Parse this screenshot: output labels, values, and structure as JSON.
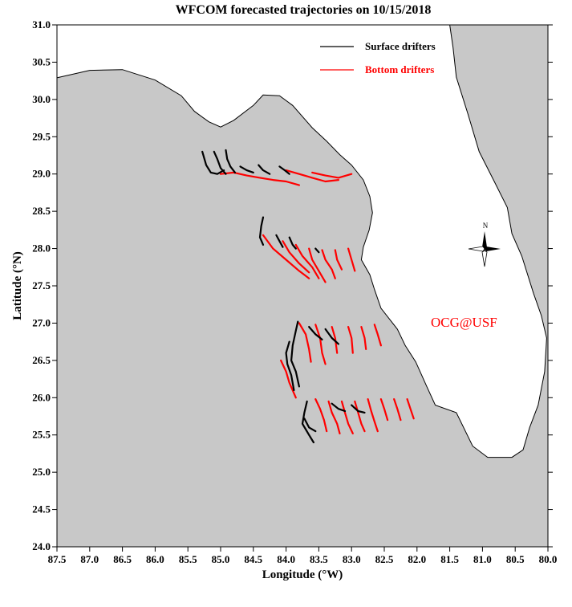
{
  "title": "WFCOM forecasted trajectories on 10/15/2018",
  "axes": {
    "xlabel": "Longitude (°W)",
    "ylabel": "Latitude (°N)",
    "xlim": [
      87.5,
      80.0
    ],
    "ylim": [
      24.0,
      31.0
    ],
    "x_ticks": [
      "87.5",
      "87.0",
      "86.5",
      "86.0",
      "85.5",
      "85.0",
      "84.5",
      "84.0",
      "83.5",
      "83.0",
      "82.5",
      "82.0",
      "81.5",
      "81.0",
      "80.5",
      "80.0"
    ],
    "y_ticks": [
      "24.0",
      "24.5",
      "25.0",
      "25.5",
      "26.0",
      "26.5",
      "27.0",
      "27.5",
      "28.0",
      "28.5",
      "29.0",
      "29.5",
      "30.0",
      "30.5",
      "31.0"
    ]
  },
  "legend": {
    "placement": "top-right",
    "items": [
      {
        "label": "Surface drifters",
        "color": "#000000"
      },
      {
        "label": "Bottom drifters",
        "color": "#ff0000"
      }
    ]
  },
  "credit": "OCG@USF",
  "compass_label": "N",
  "colors": {
    "land": "#c8c8c8",
    "surface": "#000000",
    "bottom": "#ff0000",
    "credit": "#ff0000"
  },
  "land_outline": [
    [
      87.5,
      30.29
    ],
    [
      87.0,
      30.39
    ],
    [
      86.5,
      30.4
    ],
    [
      86.0,
      30.26
    ],
    [
      85.6,
      30.05
    ],
    [
      85.4,
      29.84
    ],
    [
      85.18,
      29.7
    ],
    [
      85.0,
      29.63
    ],
    [
      84.8,
      29.72
    ],
    [
      84.5,
      29.92
    ],
    [
      84.35,
      30.06
    ],
    [
      84.1,
      30.05
    ],
    [
      83.9,
      29.92
    ],
    [
      83.6,
      29.62
    ],
    [
      83.38,
      29.44
    ],
    [
      83.18,
      29.26
    ],
    [
      83.0,
      29.12
    ],
    [
      82.82,
      28.92
    ],
    [
      82.72,
      28.7
    ],
    [
      82.68,
      28.48
    ],
    [
      82.73,
      28.25
    ],
    [
      82.82,
      28.02
    ],
    [
      82.85,
      27.85
    ],
    [
      82.72,
      27.65
    ],
    [
      82.65,
      27.45
    ],
    [
      82.55,
      27.2
    ],
    [
      82.3,
      26.92
    ],
    [
      82.18,
      26.7
    ],
    [
      82.02,
      26.48
    ],
    [
      81.85,
      26.15
    ],
    [
      81.72,
      25.9
    ],
    [
      81.4,
      25.8
    ],
    [
      81.15,
      25.35
    ],
    [
      80.92,
      25.2
    ],
    [
      80.55,
      25.2
    ],
    [
      80.38,
      25.3
    ],
    [
      80.28,
      25.6
    ],
    [
      80.15,
      25.9
    ],
    [
      80.05,
      26.35
    ],
    [
      80.02,
      26.8
    ],
    [
      80.1,
      27.1
    ],
    [
      80.22,
      27.4
    ],
    [
      80.4,
      27.9
    ],
    [
      80.55,
      28.2
    ],
    [
      80.62,
      28.55
    ],
    [
      80.82,
      28.9
    ],
    [
      81.05,
      29.3
    ],
    [
      81.22,
      29.8
    ],
    [
      81.4,
      30.3
    ],
    [
      81.45,
      30.7
    ],
    [
      81.5,
      31.0
    ],
    [
      80.0,
      31.0
    ],
    [
      80.0,
      24.0
    ],
    [
      87.5,
      24.0
    ]
  ],
  "drifter_groups": {
    "surface": [
      [
        [
          85.28,
          29.3
        ],
        [
          85.22,
          29.12
        ],
        [
          85.15,
          29.02
        ],
        [
          85.05,
          29.0
        ],
        [
          84.95,
          29.05
        ]
      ],
      [
        [
          85.1,
          29.3
        ],
        [
          85.05,
          29.2
        ],
        [
          85.0,
          29.08
        ],
        [
          84.92,
          29.0
        ]
      ],
      [
        [
          84.92,
          29.32
        ],
        [
          84.9,
          29.2
        ],
        [
          84.85,
          29.1
        ],
        [
          84.78,
          29.02
        ]
      ],
      [
        [
          84.7,
          29.1
        ],
        [
          84.6,
          29.05
        ],
        [
          84.5,
          29.02
        ]
      ],
      [
        [
          84.42,
          29.12
        ],
        [
          84.35,
          29.05
        ],
        [
          84.25,
          29.0
        ]
      ],
      [
        [
          84.1,
          29.1
        ],
        [
          84.02,
          29.05
        ],
        [
          83.95,
          29.0
        ]
      ],
      [
        [
          84.35,
          28.42
        ],
        [
          84.38,
          28.3
        ],
        [
          84.4,
          28.15
        ],
        [
          84.35,
          28.05
        ]
      ],
      [
        [
          84.15,
          28.18
        ],
        [
          84.1,
          28.1
        ],
        [
          84.05,
          28.02
        ]
      ],
      [
        [
          83.95,
          28.15
        ],
        [
          83.9,
          28.05
        ],
        [
          83.85,
          28.0
        ]
      ],
      [
        [
          83.55,
          28.0
        ],
        [
          83.5,
          27.95
        ]
      ],
      [
        [
          83.82,
          27.02
        ],
        [
          83.85,
          26.9
        ],
        [
          83.9,
          26.7
        ],
        [
          83.92,
          26.5
        ],
        [
          83.85,
          26.35
        ],
        [
          83.8,
          26.15
        ]
      ],
      [
        [
          83.95,
          26.75
        ],
        [
          84.0,
          26.6
        ],
        [
          83.98,
          26.45
        ],
        [
          83.92,
          26.3
        ],
        [
          83.88,
          26.1
        ]
      ],
      [
        [
          83.65,
          26.95
        ],
        [
          83.55,
          26.85
        ],
        [
          83.45,
          26.78
        ]
      ],
      [
        [
          83.4,
          26.92
        ],
        [
          83.3,
          26.8
        ],
        [
          83.2,
          26.72
        ]
      ],
      [
        [
          83.68,
          25.95
        ],
        [
          83.72,
          25.8
        ],
        [
          83.75,
          25.65
        ],
        [
          83.65,
          25.5
        ],
        [
          83.58,
          25.4
        ]
      ],
      [
        [
          83.72,
          25.72
        ],
        [
          83.65,
          25.6
        ],
        [
          83.55,
          25.55
        ]
      ],
      [
        [
          83.3,
          25.92
        ],
        [
          83.2,
          25.85
        ],
        [
          83.1,
          25.82
        ]
      ],
      [
        [
          83.0,
          25.9
        ],
        [
          82.9,
          25.82
        ],
        [
          82.8,
          25.8
        ]
      ]
    ],
    "bottom": [
      [
        [
          85.0,
          29.0
        ],
        [
          84.8,
          29.02
        ],
        [
          84.6,
          28.98
        ],
        [
          84.4,
          28.95
        ],
        [
          84.2,
          28.92
        ],
        [
          84.0,
          28.9
        ],
        [
          83.8,
          28.85
        ]
      ],
      [
        [
          84.0,
          29.05
        ],
        [
          83.8,
          29.0
        ],
        [
          83.6,
          28.95
        ],
        [
          83.4,
          28.9
        ],
        [
          83.2,
          28.92
        ]
      ],
      [
        [
          83.6,
          29.02
        ],
        [
          83.4,
          28.98
        ],
        [
          83.2,
          28.95
        ],
        [
          83.0,
          29.0
        ]
      ],
      [
        [
          84.35,
          28.18
        ],
        [
          84.2,
          28.0
        ],
        [
          84.0,
          27.85
        ],
        [
          83.8,
          27.7
        ],
        [
          83.65,
          27.6
        ]
      ],
      [
        [
          84.05,
          28.1
        ],
        [
          83.95,
          27.95
        ],
        [
          83.8,
          27.8
        ],
        [
          83.65,
          27.68
        ]
      ],
      [
        [
          83.85,
          28.05
        ],
        [
          83.75,
          27.9
        ],
        [
          83.6,
          27.75
        ],
        [
          83.5,
          27.6
        ]
      ],
      [
        [
          83.65,
          28.0
        ],
        [
          83.6,
          27.85
        ],
        [
          83.5,
          27.7
        ],
        [
          83.4,
          27.55
        ]
      ],
      [
        [
          83.45,
          27.98
        ],
        [
          83.4,
          27.85
        ],
        [
          83.3,
          27.72
        ],
        [
          83.25,
          27.6
        ]
      ],
      [
        [
          83.25,
          27.98
        ],
        [
          83.22,
          27.85
        ],
        [
          83.15,
          27.72
        ]
      ],
      [
        [
          83.05,
          28.0
        ],
        [
          83.0,
          27.85
        ],
        [
          82.95,
          27.7
        ]
      ],
      [
        [
          84.08,
          26.5
        ],
        [
          84.0,
          26.35
        ],
        [
          83.95,
          26.2
        ],
        [
          83.85,
          26.0
        ]
      ],
      [
        [
          83.8,
          27.0
        ],
        [
          83.7,
          26.85
        ],
        [
          83.65,
          26.65
        ],
        [
          83.62,
          26.48
        ]
      ],
      [
        [
          83.55,
          26.98
        ],
        [
          83.48,
          26.8
        ],
        [
          83.45,
          26.6
        ],
        [
          83.4,
          26.45
        ]
      ],
      [
        [
          83.3,
          26.95
        ],
        [
          83.25,
          26.8
        ],
        [
          83.22,
          26.6
        ]
      ],
      [
        [
          83.05,
          26.95
        ],
        [
          83.0,
          26.8
        ],
        [
          82.98,
          26.6
        ]
      ],
      [
        [
          82.85,
          26.95
        ],
        [
          82.8,
          26.8
        ],
        [
          82.78,
          26.65
        ]
      ],
      [
        [
          82.65,
          26.98
        ],
        [
          82.6,
          26.85
        ],
        [
          82.55,
          26.7
        ]
      ],
      [
        [
          83.55,
          25.98
        ],
        [
          83.48,
          25.85
        ],
        [
          83.42,
          25.7
        ],
        [
          83.38,
          25.55
        ]
      ],
      [
        [
          83.35,
          25.95
        ],
        [
          83.3,
          25.8
        ],
        [
          83.22,
          25.65
        ],
        [
          83.18,
          25.52
        ]
      ],
      [
        [
          83.15,
          25.95
        ],
        [
          83.1,
          25.8
        ],
        [
          83.05,
          25.65
        ],
        [
          82.98,
          25.52
        ]
      ],
      [
        [
          82.95,
          25.95
        ],
        [
          82.9,
          25.8
        ],
        [
          82.85,
          25.65
        ],
        [
          82.8,
          25.55
        ]
      ],
      [
        [
          82.75,
          25.98
        ],
        [
          82.7,
          25.82
        ],
        [
          82.65,
          25.68
        ],
        [
          82.6,
          25.55
        ]
      ],
      [
        [
          82.55,
          25.98
        ],
        [
          82.5,
          25.85
        ],
        [
          82.45,
          25.7
        ]
      ],
      [
        [
          82.35,
          25.98
        ],
        [
          82.3,
          25.85
        ],
        [
          82.25,
          25.7
        ]
      ],
      [
        [
          82.15,
          25.98
        ],
        [
          82.1,
          25.85
        ],
        [
          82.05,
          25.72
        ]
      ]
    ]
  }
}
